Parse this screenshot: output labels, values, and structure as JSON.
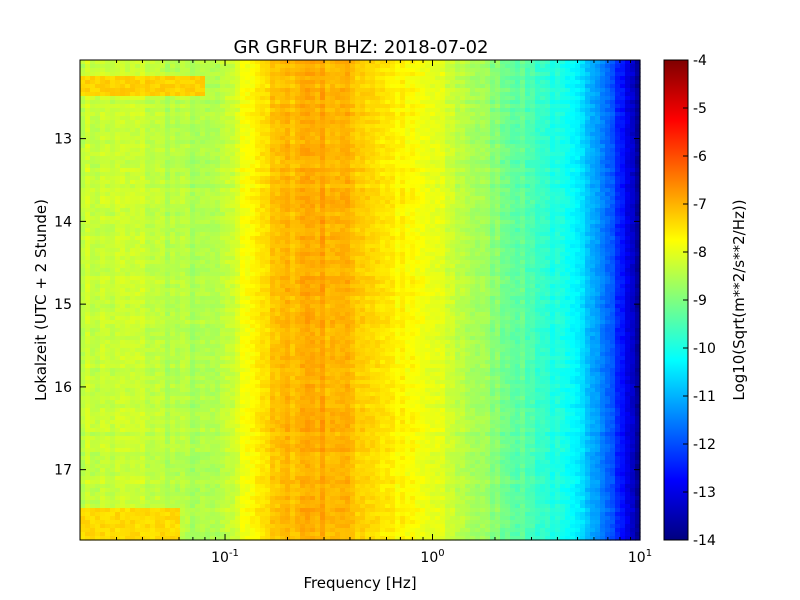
{
  "chart_data": {
    "type": "heatmap",
    "title": "GR GRFUR BHZ: 2018-07-02",
    "xlabel": "Frequency [Hz]",
    "ylabel": "Lokalzeit (UTC + 2 Stunde)",
    "x_scale": "log",
    "x_range_hz": [
      0.02,
      10
    ],
    "x_ticks": [
      {
        "value": 0.1,
        "base": "10",
        "exp": "-1"
      },
      {
        "value": 1,
        "base": "10",
        "exp": "0"
      },
      {
        "value": 10,
        "base": "10",
        "exp": "1"
      }
    ],
    "y_range_hours": [
      12.05,
      17.85
    ],
    "y_ticks": [
      "13",
      "14",
      "15",
      "16",
      "17"
    ],
    "y_inverted": true,
    "colorbar": {
      "label": "Log10(Sqrt(m**2/s**2/Hz))",
      "range": [
        -14,
        -4
      ],
      "ticks": [
        "-4",
        "-5",
        "-6",
        "-7",
        "-8",
        "-9",
        "-10",
        "-11",
        "-12",
        "-13",
        "-14"
      ],
      "colormap": "jet"
    },
    "spectrum_profile": {
      "freq_hz": [
        0.02,
        0.04,
        0.06,
        0.08,
        0.1,
        0.135,
        0.18,
        0.25,
        0.35,
        0.5,
        0.7,
        1.0,
        1.5,
        2.0,
        3.0,
        4.0,
        5.0,
        6.0,
        7.0,
        8.0,
        10.0
      ],
      "value": [
        -8.3,
        -8.3,
        -8.5,
        -8.6,
        -8.5,
        -7.6,
        -7.2,
        -6.9,
        -7.0,
        -7.3,
        -7.7,
        -8.0,
        -8.5,
        -8.9,
        -9.5,
        -10.0,
        -10.5,
        -11.0,
        -11.6,
        -12.5,
        -13.8
      ]
    },
    "features": [
      {
        "freq_range_hz": [
          0.02,
          0.08
        ],
        "time_range_hours": [
          12.25,
          12.5
        ],
        "value": -7.3
      },
      {
        "freq_range_hz": [
          0.02,
          0.06
        ],
        "time_range_hours": [
          17.45,
          17.85
        ],
        "value": -7.4
      }
    ]
  }
}
